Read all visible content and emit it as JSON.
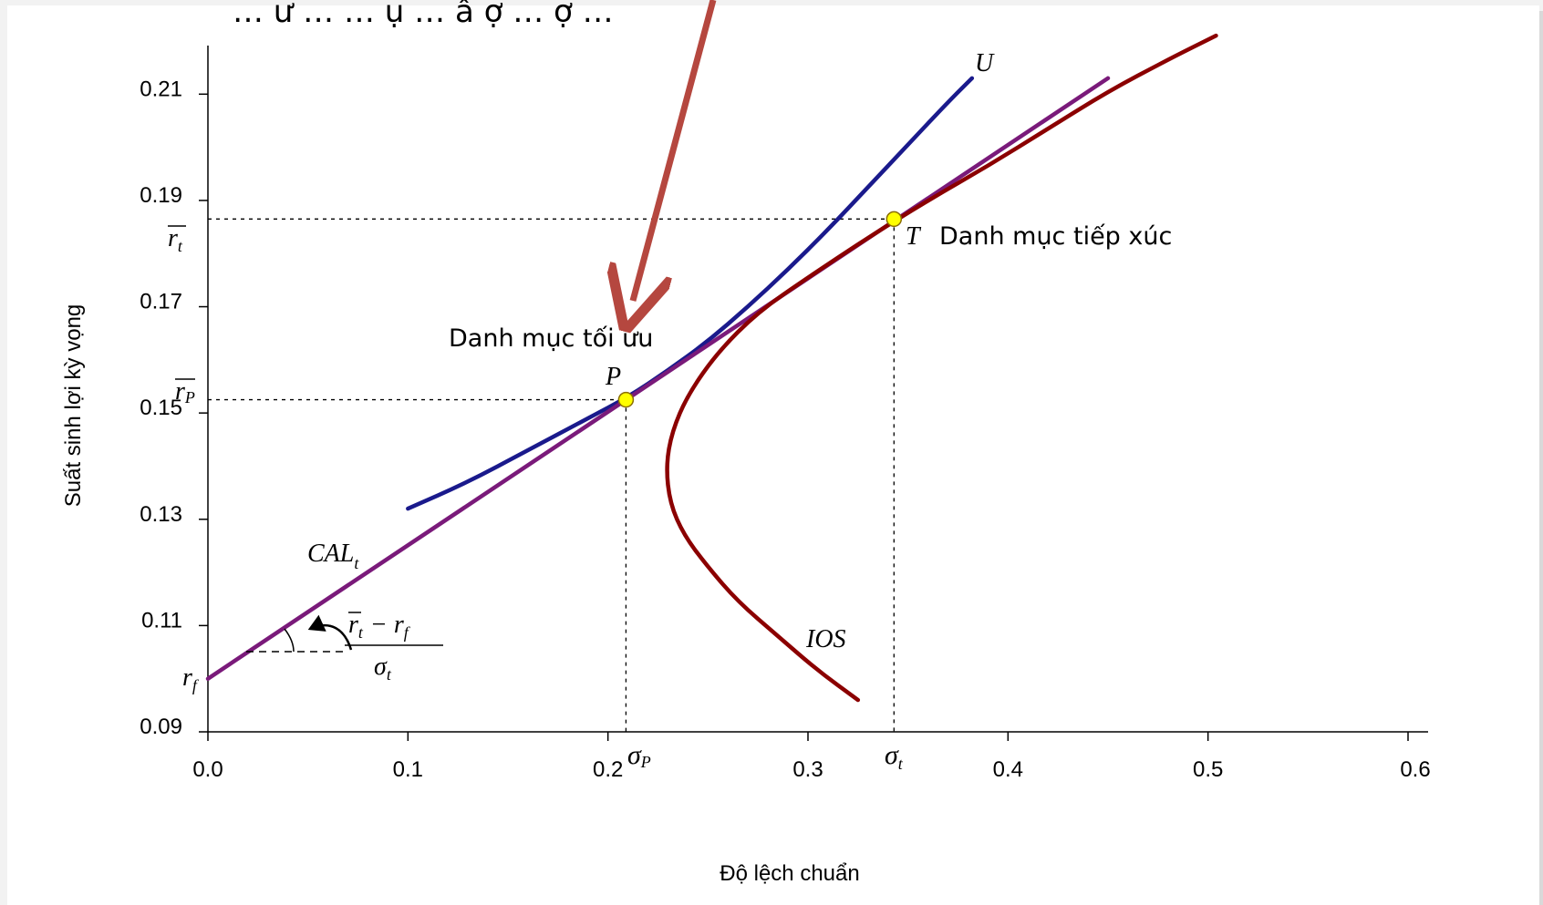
{
  "chart_data": {
    "type": "line",
    "title": "",
    "header_text": "… ư … … ụ … ấ ợ … ợ …",
    "xlabel": "Độ lệch chuẩn",
    "ylabel": "Suất sinh lợi kỳ vọng",
    "xlim": [
      0.0,
      0.6
    ],
    "ylim": [
      0.09,
      0.22
    ],
    "x_ticks": [
      "0.0",
      "0.1",
      "0.2",
      "0.3",
      "0.4",
      "0.5",
      "0.6"
    ],
    "y_ticks": [
      "0.09",
      "0.11",
      "0.13",
      "0.15",
      "0.17",
      "0.19",
      "0.21"
    ],
    "grid": false,
    "legend": "none",
    "series": [
      {
        "name": "U",
        "color": "#1a1a8c",
        "points": [
          [
            0.1,
            0.132
          ],
          [
            0.13,
            0.137
          ],
          [
            0.16,
            0.143
          ],
          [
            0.19,
            0.149
          ],
          [
            0.21,
            0.153
          ],
          [
            0.23,
            0.158
          ],
          [
            0.25,
            0.1635
          ],
          [
            0.27,
            0.17
          ],
          [
            0.29,
            0.177
          ],
          [
            0.31,
            0.1845
          ],
          [
            0.33,
            0.1925
          ],
          [
            0.35,
            0.2005
          ],
          [
            0.37,
            0.2085
          ],
          [
            0.382,
            0.213
          ]
        ]
      },
      {
        "name": "CAL",
        "color": "#7a1a7a",
        "points": [
          [
            0.0,
            0.1
          ],
          [
            0.45,
            0.213
          ]
        ]
      },
      {
        "name": "IOS",
        "color": "#8b0000",
        "points": [
          [
            0.325,
            0.096
          ],
          [
            0.305,
            0.1015
          ],
          [
            0.285,
            0.108
          ],
          [
            0.265,
            0.1145
          ],
          [
            0.25,
            0.121
          ],
          [
            0.238,
            0.127
          ],
          [
            0.231,
            0.133
          ],
          [
            0.229,
            0.14
          ],
          [
            0.232,
            0.1465
          ],
          [
            0.24,
            0.1535
          ],
          [
            0.255,
            0.1615
          ],
          [
            0.275,
            0.169
          ],
          [
            0.3,
            0.1755
          ],
          [
            0.33,
            0.183
          ],
          [
            0.36,
            0.19
          ],
          [
            0.39,
            0.1965
          ],
          [
            0.42,
            0.2035
          ],
          [
            0.45,
            0.2105
          ],
          [
            0.48,
            0.2165
          ],
          [
            0.504,
            0.221
          ]
        ]
      }
    ],
    "points": [
      {
        "id": "P",
        "x": 0.209,
        "y": 0.1525,
        "color": "#ffff00"
      },
      {
        "id": "T",
        "x": 0.343,
        "y": 0.1865,
        "color": "#ffff00"
      }
    ],
    "annotations": {
      "optimal": "Danh mục tối ưu",
      "tangent": "Danh mục tiếp xúc",
      "P": "P",
      "T": "T",
      "U": "U",
      "IOS": "IOS",
      "CAL": "CAL",
      "CAL_sub": "t",
      "rt_bar": "r",
      "rt_sub": "t",
      "rp_bar": "r",
      "rp_sub": "P",
      "rf": "r",
      "rf_sub": "f",
      "sigma_p": "σ",
      "sigma_p_sub": "P",
      "sigma_t": "σ",
      "sigma_t_sub": "t",
      "slope_num": "r",
      "slope_num_sub": "t",
      "slope_minus": "− r",
      "slope_minus_sub": "f",
      "slope_den": "σ",
      "slope_den_sub": "t"
    },
    "arrow_color": "#b5473f"
  }
}
